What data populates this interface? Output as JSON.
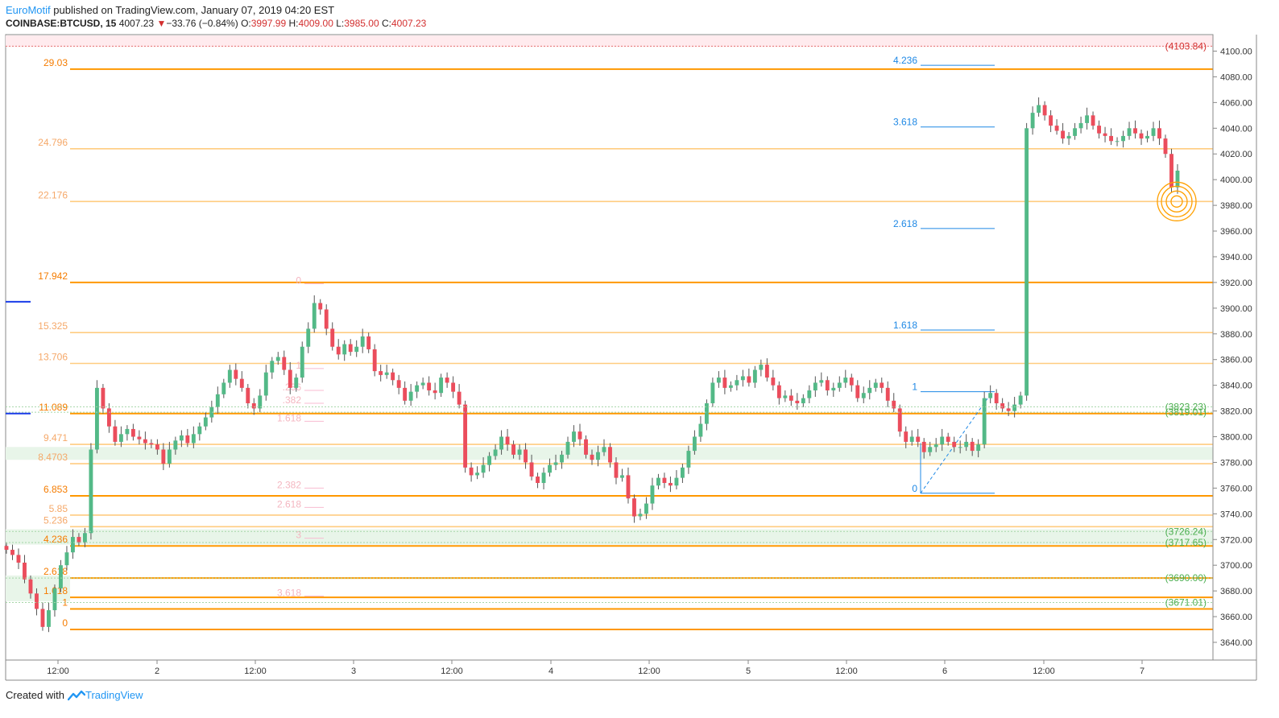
{
  "header": {
    "author": "EuroMotif",
    "published_text": "published on TradingView.com, January 07, 2019 04:20 EST",
    "symbol": "COINBASE:BTCUSD, 15",
    "last": "4007.23",
    "change_arrow": "▼",
    "change": "−33.76 (−0.84%)",
    "o_label": "O:",
    "o": "3997.99",
    "h_label": "H:",
    "h": "4009.00",
    "l_label": "L:",
    "l": "3985.00",
    "c_label": "C:",
    "c": "4007.23"
  },
  "footer": {
    "created_with": "Created with",
    "brand": "TradingView"
  },
  "colors": {
    "up": "#53b987",
    "down": "#eb4d5c",
    "wick": "#555555",
    "fib_dark": "#ff9800",
    "fib_light": "#ffcc80",
    "ext": "#2962ff",
    "green_label": "#4caf50",
    "red_label": "#d32f2f"
  },
  "chart_data": {
    "type": "candlestick",
    "y_axis": {
      "min": 3630,
      "max": 4110,
      "side": "right",
      "ticks": [
        "3640.00",
        "3660.00",
        "3680.00",
        "3700.00",
        "3720.00",
        "3740.00",
        "3760.00",
        "3780.00",
        "3800.00",
        "3820.00",
        "3840.00",
        "3860.00",
        "3880.00",
        "3900.00",
        "3920.00",
        "3940.00",
        "3960.00",
        "3980.00",
        "4000.00",
        "4020.00",
        "4040.00",
        "4060.00",
        "4080.00",
        "4100.00"
      ]
    },
    "x_axis": {
      "ticks": [
        "12:00",
        "2",
        "12:00",
        "3",
        "12:00",
        "4",
        "12:00",
        "5",
        "12:00",
        "6",
        "12:00",
        "7"
      ]
    },
    "price_markers": [
      {
        "label": "(4103.84)",
        "value": 4103.84,
        "color": "red"
      },
      {
        "label": "(3823.23)",
        "value": 3823.23,
        "color": "green"
      },
      {
        "label": "(3819.01)",
        "value": 3819.01,
        "color": "green"
      },
      {
        "label": "(3726.24)",
        "value": 3726.24,
        "color": "green"
      },
      {
        "label": "(3717.65)",
        "value": 3717.65,
        "color": "green"
      },
      {
        "label": "(3690.00)",
        "value": 3690.0,
        "color": "green"
      },
      {
        "label": "(3671.01)",
        "value": 3671.01,
        "color": "green"
      }
    ],
    "fib_levels_left": [
      {
        "label": "29.03",
        "value": 4086,
        "style": "dark"
      },
      {
        "label": "24.796",
        "value": 4024,
        "style": "light"
      },
      {
        "label": "22.176",
        "value": 3983,
        "style": "light"
      },
      {
        "label": "17.942",
        "value": 3920,
        "style": "dark"
      },
      {
        "label": "15.325",
        "value": 3881,
        "style": "light"
      },
      {
        "label": "13.706",
        "value": 3857,
        "style": "light"
      },
      {
        "label": "11.089",
        "value": 3818,
        "style": "dark"
      },
      {
        "label": "9.471",
        "value": 3794,
        "style": "light"
      },
      {
        "label": "8.4703",
        "value": 3779,
        "style": "light"
      },
      {
        "label": "6.853",
        "value": 3754,
        "style": "dark"
      },
      {
        "label": "5.85",
        "value": 3739,
        "style": "light"
      },
      {
        "label": "5.236",
        "value": 3730,
        "style": "light"
      },
      {
        "label": "4.236",
        "value": 3715,
        "style": "dark"
      },
      {
        "label": "2.618",
        "value": 3690,
        "style": "dark"
      },
      {
        "label": "1.618",
        "value": 3675,
        "style": "dark"
      },
      {
        "label": "1",
        "value": 3666,
        "style": "dark"
      },
      {
        "label": "0",
        "value": 3650,
        "style": "dark"
      }
    ],
    "fib_ext_right": [
      {
        "label": "4.236",
        "value": 4089
      },
      {
        "label": "3.618",
        "value": 4041
      },
      {
        "label": "2.618",
        "value": 3962
      },
      {
        "label": "1.618",
        "value": 3883
      },
      {
        "label": "1",
        "value": 3835
      },
      {
        "label": "0",
        "value": 3756
      }
    ],
    "fib_mid_faded": [
      {
        "label": "0",
        "value": 3919
      },
      {
        "label": "1",
        "value": 3853
      },
      {
        "label": ".236",
        "value": 3836
      },
      {
        "label": ".382",
        "value": 3826
      },
      {
        "label": "1.618",
        "value": 3812
      },
      {
        "label": "2.382",
        "value": 3760
      },
      {
        "label": "2.618",
        "value": 3745
      },
      {
        "label": "3",
        "value": 3721
      },
      {
        "label": "3.618",
        "value": 3676
      }
    ],
    "series_closes": [
      3712,
      3708,
      3702,
      3689,
      3678,
      3666,
      3652,
      3665,
      3682,
      3700,
      3710,
      3722,
      3718,
      3725,
      3790,
      3838,
      3822,
      3808,
      3796,
      3802,
      3806,
      3800,
      3798,
      3795,
      3794,
      3790,
      3779,
      3790,
      3797,
      3801,
      3795,
      3802,
      3808,
      3815,
      3823,
      3833,
      3842,
      3852,
      3845,
      3838,
      3826,
      3822,
      3832,
      3850,
      3859,
      3862,
      3852,
      3838,
      3846,
      3870,
      3884,
      3904,
      3899,
      3884,
      3870,
      3864,
      3872,
      3866,
      3870,
      3878,
      3868,
      3851,
      3848,
      3850,
      3844,
      3838,
      3828,
      3835,
      3840,
      3842,
      3836,
      3834,
      3846,
      3842,
      3835,
      3825,
      3776,
      3770,
      3772,
      3778,
      3785,
      3790,
      3800,
      3794,
      3786,
      3790,
      3780,
      3769,
      3764,
      3772,
      3778,
      3780,
      3786,
      3796,
      3804,
      3798,
      3786,
      3782,
      3788,
      3792,
      3780,
      3768,
      3770,
      3752,
      3738,
      3740,
      3748,
      3762,
      3768,
      3764,
      3762,
      3768,
      3776,
      3789,
      3800,
      3810,
      3826,
      3842,
      3846,
      3838,
      3840,
      3844,
      3847,
      3842,
      3852,
      3856,
      3846,
      3840,
      3830,
      3832,
      3828,
      3826,
      3830,
      3836,
      3842,
      3844,
      3836,
      3838,
      3842,
      3846,
      3840,
      3830,
      3834,
      3838,
      3842,
      3838,
      3828,
      3822,
      3804,
      3796,
      3800,
      3796,
      3788,
      3792,
      3794,
      3800,
      3796,
      3792,
      3792,
      3796,
      3789,
      3794,
      3830,
      3834,
      3826,
      3822,
      3820,
      3825,
      3832,
      4040,
      4052,
      4058,
      4050,
      4042,
      4038,
      4032,
      4034,
      4040,
      4044,
      4050,
      4042,
      4036,
      4034,
      4030,
      4030,
      4034,
      4040,
      4036,
      4032,
      4034,
      4040,
      4032,
      4020,
      3994,
      4007
    ]
  }
}
